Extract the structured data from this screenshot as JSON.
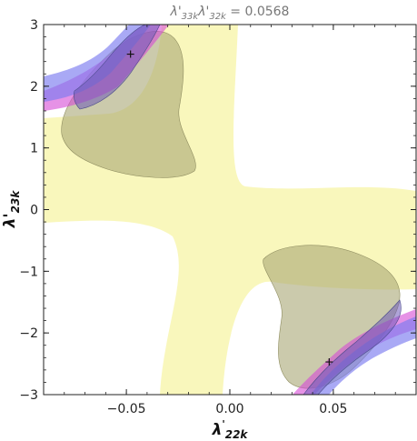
{
  "chart_data": {
    "type": "region",
    "title": "λ'33kλ'32k = 0.0568",
    "title_parts": {
      "sym1": "λ'",
      "sub1": "33k",
      "sym2": "λ'",
      "sub2": "32k",
      "rest": " = 0.0568"
    },
    "xlabel": {
      "symbol": "λ",
      "sup": "'",
      "sub": "22k"
    },
    "ylabel": {
      "symbol": "λ'",
      "sub": "23k"
    },
    "xlim": [
      -0.09,
      0.09
    ],
    "ylim": [
      -3,
      3
    ],
    "x_ticks": [
      -0.05,
      0.0,
      0.05
    ],
    "x_tick_labels": [
      "−0.05",
      "0.00",
      "0.05"
    ],
    "y_ticks": [
      -3,
      -2,
      -1,
      0,
      1,
      2,
      3
    ],
    "y_tick_labels": [
      "−3",
      "−2",
      "−1",
      "0",
      "1",
      "2",
      "3"
    ],
    "markers": [
      {
        "x": -0.048,
        "y": 2.52
      },
      {
        "x": 0.048,
        "y": -2.47
      }
    ],
    "colors": {
      "yellow_band": "#f8f6b0",
      "gray_region": "#a9a774",
      "blue_band": "#7b7bf0",
      "magenta_band": "#d54ad5",
      "dark_overlap": "#6e5ab8",
      "frame": "#222222"
    }
  }
}
